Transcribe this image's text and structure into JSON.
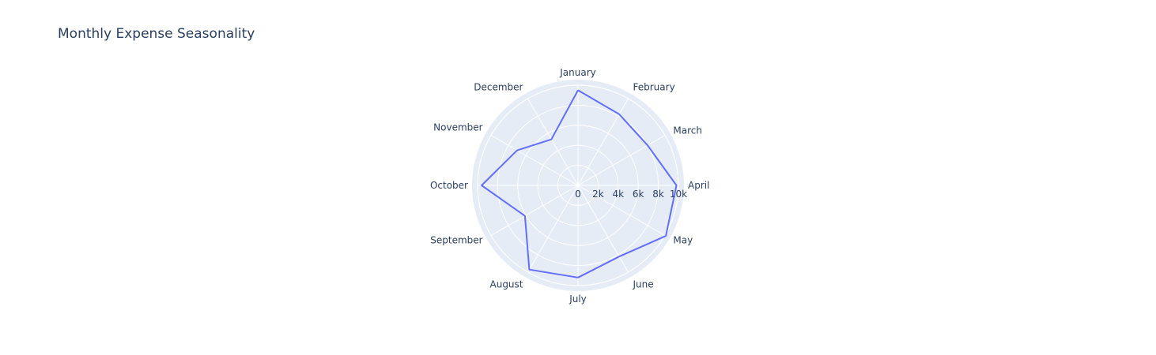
{
  "chart_data": {
    "type": "radar",
    "title": "Monthly Expense Seasonality",
    "categories": [
      "January",
      "February",
      "March",
      "April",
      "May",
      "June",
      "July",
      "August",
      "September",
      "October",
      "November",
      "December"
    ],
    "series": [
      {
        "values": [
          9500,
          8200,
          8000,
          9800,
          10100,
          8200,
          9200,
          9700,
          6100,
          9600,
          7000,
          5300
        ]
      }
    ],
    "radial_range": [
      0,
      10000
    ],
    "radial_ticks": [
      0,
      2000,
      4000,
      6000,
      8000,
      10000
    ],
    "radial_tick_labels": [
      "0",
      "2k",
      "4k",
      "6k",
      "8k",
      "10k"
    ],
    "line_color": "#636efa",
    "polar_bg_color": "#e5ecf6",
    "grid_color": "#ffffff",
    "grid": true,
    "legend": false
  }
}
